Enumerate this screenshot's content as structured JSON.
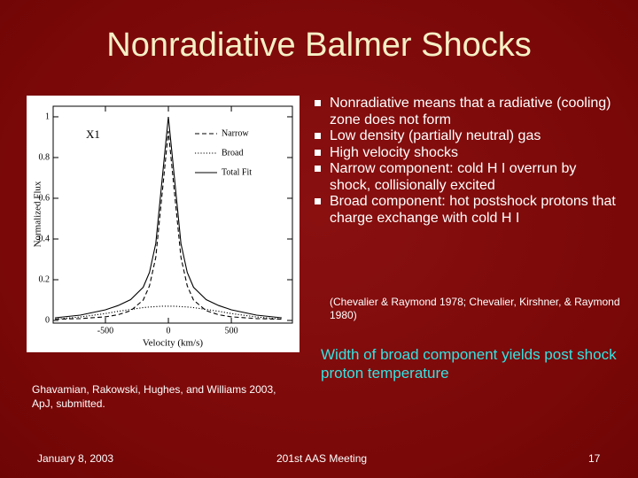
{
  "title": "Nonradiative Balmer Shocks",
  "bullets": [
    "Nonradiative means that a radiative (cooling) zone does not form",
    "Low density (partially neutral) gas",
    "High velocity shocks",
    "Narrow component: cold H I overrun by shock, collisionally excited",
    "Broad component: hot postshock protons that charge exchange with cold H I"
  ],
  "citation": "(Chevalier & Raymond 1978; Chevalier, Kirshner, & Raymond 1980)",
  "highlight": "Width of broad component yields post shock proton temperature",
  "figure_caption": "Ghavamian, Rakowski, Hughes, and Williams 2003, ApJ, submitted.",
  "footer": {
    "date": "January 8, 2003",
    "event": "201st AAS Meeting",
    "page": "17"
  },
  "chart_data": {
    "type": "line",
    "annotation": "X1",
    "x_label": "Velocity (km/s)",
    "y_label": "Normalized Flux",
    "x": [
      -900,
      -700,
      -500,
      -400,
      -300,
      -200,
      -150,
      -100,
      -50,
      0,
      50,
      100,
      150,
      200,
      300,
      400,
      500,
      700,
      900
    ],
    "series": [
      {
        "name": "Narrow",
        "color": "#000000",
        "line_style": "dashed",
        "values": [
          0.006,
          0.009,
          0.018,
          0.028,
          0.048,
          0.1,
          0.17,
          0.31,
          0.62,
          0.93,
          0.62,
          0.31,
          0.17,
          0.1,
          0.048,
          0.028,
          0.018,
          0.009,
          0.006
        ]
      },
      {
        "name": "Broad",
        "color": "#000000",
        "line_style": "dotted",
        "values": [
          0.007,
          0.017,
          0.034,
          0.045,
          0.054,
          0.063,
          0.066,
          0.068,
          0.07,
          0.07,
          0.07,
          0.068,
          0.066,
          0.063,
          0.054,
          0.045,
          0.034,
          0.017,
          0.007
        ]
      },
      {
        "name": "Total Fit",
        "color": "#000000",
        "line_style": "solid",
        "values": [
          0.013,
          0.026,
          0.052,
          0.073,
          0.102,
          0.163,
          0.236,
          0.378,
          0.69,
          1.0,
          0.69,
          0.378,
          0.236,
          0.163,
          0.102,
          0.073,
          0.052,
          0.026,
          0.013
        ]
      }
    ],
    "xlim": [
      -915,
      985
    ],
    "ylim": [
      -0.013,
      1.052
    ],
    "xticks": [
      -500,
      0,
      500
    ],
    "yticks": [
      0,
      0.2,
      0.4,
      0.6,
      0.8,
      1
    ]
  }
}
